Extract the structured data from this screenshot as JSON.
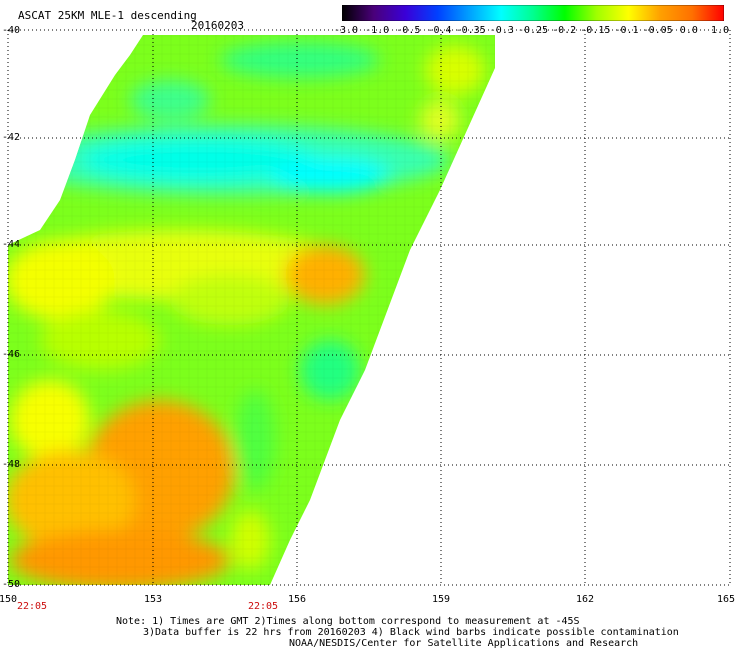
{
  "header": {
    "title": "ASCAT 25KM MLE-1 descending",
    "date": "20160203"
  },
  "colorbar": {
    "labels": [
      "-3.0",
      "-1.0",
      "-0.5",
      "-0.4",
      "-0.35",
      "-0.3",
      "-0.25",
      "-0.2",
      "-0.15",
      "-0.1",
      "-0.05",
      "0.0",
      "1.0"
    ],
    "colors": [
      "#000000",
      "#4a007a",
      "#3a00d8",
      "#0040ff",
      "#00a0ff",
      "#00ffff",
      "#00ff90",
      "#00ff00",
      "#a0ff00",
      "#ffff00",
      "#ffa000",
      "#ff7000",
      "#ff0000"
    ]
  },
  "axes": {
    "lat_labels": [
      "-40",
      "-42",
      "-44",
      "-46",
      "-48",
      "-50"
    ],
    "lon_labels": [
      "150",
      "153",
      "156",
      "159",
      "162",
      "165"
    ],
    "time_labels": [
      "22:05",
      "22:05"
    ]
  },
  "notes": {
    "line1": "Note: 1) Times are GMT 2)Times along bottom correspond to measurement at -45S",
    "line2": "3)Data buffer is 22 hrs from 20160203 4) Black wind barbs indicate possible contamination",
    "line3": "NOAA/NESDIS/Center for Satellite Applications and Research"
  }
}
